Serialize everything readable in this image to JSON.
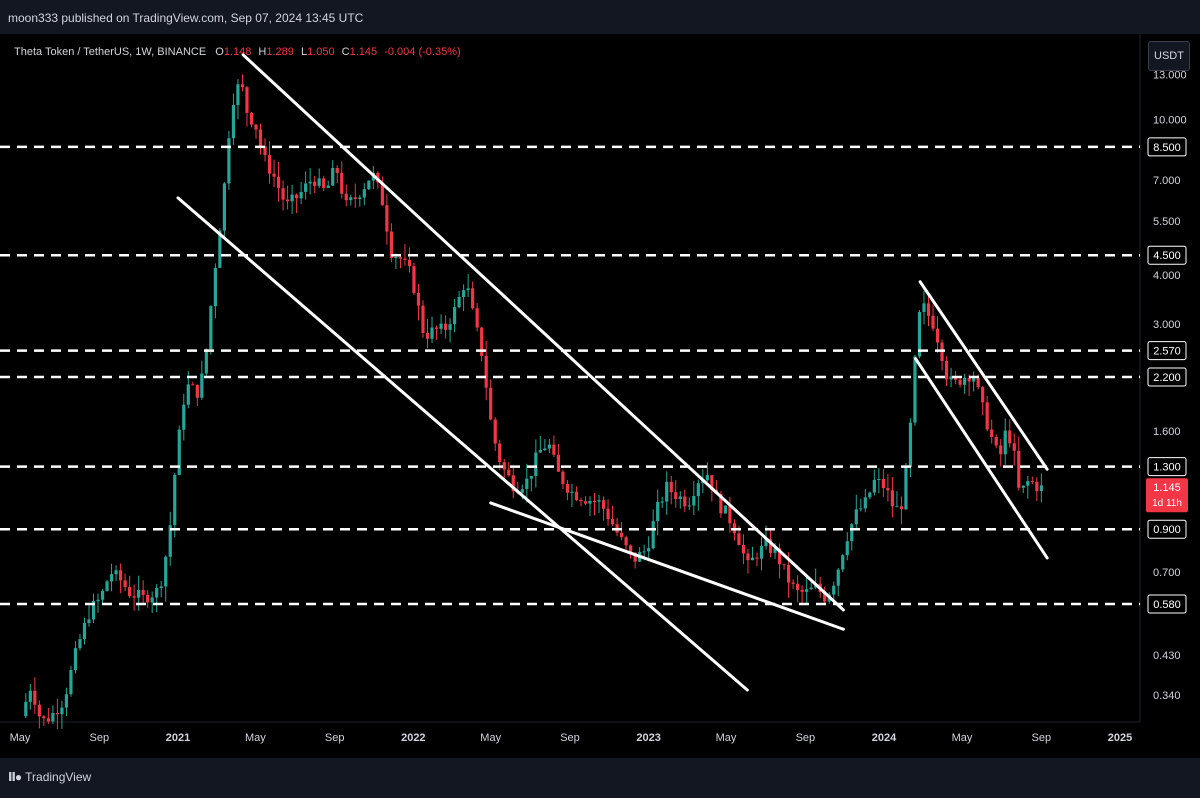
{
  "header": {
    "published": "moon333 published on TradingView.com, Sep 07, 2024 13:45 UTC"
  },
  "legend": {
    "symbol": "Theta Token / TetherUS, 1W, BINANCE",
    "open_label": "O",
    "open": "1.148",
    "high_label": "H",
    "high": "1.289",
    "low_label": "L",
    "low": "1.050",
    "close_label": "C",
    "close": "1.145",
    "change": "-0.004 (-0.35%)"
  },
  "unit_button": "USDT",
  "footer": {
    "brand": "TradingView"
  },
  "colors": {
    "up": "#26a69a",
    "down": "#f23645",
    "background": "#000000",
    "level_line": "#ffffff",
    "trend_line": "#ffffff",
    "text": "#d1d4dc"
  },
  "chart_data": {
    "type": "candlestick",
    "title": "Theta Token / TetherUS, 1W, BINANCE",
    "yscale": "log",
    "ylim": [
      0.29,
      16.5
    ],
    "xlim": [
      "2020-05-01",
      "2025-02-01"
    ],
    "y_ticks": [
      "13.000",
      "10.000",
      "7.000",
      "5.500",
      "4.000",
      "3.000",
      "1.600",
      "0.700",
      "0.430",
      "0.340"
    ],
    "x_ticks": [
      {
        "label": "May",
        "date": "2020-05-01"
      },
      {
        "label": "Sep",
        "date": "2020-09-01"
      },
      {
        "label": "2021",
        "date": "2021-01-01"
      },
      {
        "label": "May",
        "date": "2021-05-01"
      },
      {
        "label": "Sep",
        "date": "2021-09-01"
      },
      {
        "label": "2022",
        "date": "2022-01-01"
      },
      {
        "label": "May",
        "date": "2022-05-01"
      },
      {
        "label": "Sep",
        "date": "2022-09-01"
      },
      {
        "label": "2023",
        "date": "2023-01-01"
      },
      {
        "label": "May",
        "date": "2023-05-01"
      },
      {
        "label": "Sep",
        "date": "2023-09-01"
      },
      {
        "label": "2024",
        "date": "2024-01-01"
      },
      {
        "label": "May",
        "date": "2024-05-01"
      },
      {
        "label": "Sep",
        "date": "2024-09-01"
      },
      {
        "label": "2025",
        "date": "2025-01-01"
      }
    ],
    "horizontal_levels": [
      {
        "value": 8.5,
        "label": "8.500"
      },
      {
        "value": 4.5,
        "label": "4.500"
      },
      {
        "value": 2.57,
        "label": "2.570"
      },
      {
        "value": 2.2,
        "label": "2.200"
      },
      {
        "value": 1.3,
        "label": "1.300"
      },
      {
        "value": 0.9,
        "label": "0.900"
      },
      {
        "value": 0.58,
        "label": "0.580"
      }
    ],
    "last_price": {
      "value": 1.145,
      "label": "1.145",
      "countdown": "1d 11h"
    },
    "trend_lines": [
      {
        "name": "upper-channel-2021",
        "from": [
          "2021-04-12",
          14.6
        ],
        "to": [
          "2023-10-30",
          0.56
        ]
      },
      {
        "name": "lower-channel-2021",
        "from": [
          "2021-01-01",
          6.3
        ],
        "to": [
          "2023-06-03",
          0.35
        ]
      },
      {
        "name": "wedge-lower",
        "from": [
          "2022-05-01",
          1.05
        ],
        "to": [
          "2023-10-30",
          0.5
        ]
      },
      {
        "name": "upper-channel-2024",
        "from": [
          "2024-02-26",
          3.85
        ],
        "to": [
          "2024-09-10",
          1.28
        ]
      },
      {
        "name": "lower-channel-2024",
        "from": [
          "2024-02-19",
          2.45
        ],
        "to": [
          "2024-09-10",
          0.76
        ]
      }
    ],
    "price_path": [
      [
        "2020-05-10",
        0.3
      ],
      [
        "2020-05-25",
        0.36
      ],
      [
        "2020-06-10",
        0.29
      ],
      [
        "2020-06-25",
        0.3
      ],
      [
        "2020-07-15",
        0.33
      ],
      [
        "2020-08-05",
        0.45
      ],
      [
        "2020-08-25",
        0.56
      ],
      [
        "2020-09-10",
        0.6
      ],
      [
        "2020-09-25",
        0.7
      ],
      [
        "2020-10-10",
        0.67
      ],
      [
        "2020-10-25",
        0.62
      ],
      [
        "2020-11-15",
        0.6
      ],
      [
        "2020-12-10",
        0.63
      ],
      [
        "2020-12-25",
        0.85
      ],
      [
        "2021-01-05",
        1.35
      ],
      [
        "2021-01-20",
        2.1
      ],
      [
        "2021-02-10",
        2.0
      ],
      [
        "2021-02-20",
        2.5
      ],
      [
        "2021-03-05",
        4.0
      ],
      [
        "2021-03-20",
        6.5
      ],
      [
        "2021-04-01",
        11.0
      ],
      [
        "2021-04-15",
        12.5
      ],
      [
        "2021-04-25",
        10.5
      ],
      [
        "2021-05-10",
        9.5
      ],
      [
        "2021-05-20",
        8.0
      ],
      [
        "2021-06-05",
        7.2
      ],
      [
        "2021-06-25",
        6.0
      ],
      [
        "2021-07-15",
        6.4
      ],
      [
        "2021-08-05",
        7.1
      ],
      [
        "2021-08-25",
        6.5
      ],
      [
        "2021-09-10",
        7.6
      ],
      [
        "2021-09-25",
        6.0
      ],
      [
        "2021-10-10",
        6.3
      ],
      [
        "2021-10-25",
        6.8
      ],
      [
        "2021-11-05",
        7.3
      ],
      [
        "2021-11-20",
        6.3
      ],
      [
        "2021-12-05",
        4.6
      ],
      [
        "2021-12-20",
        4.4
      ],
      [
        "2022-01-05",
        4.0
      ],
      [
        "2022-01-25",
        2.8
      ],
      [
        "2022-02-10",
        2.9
      ],
      [
        "2022-02-25",
        2.9
      ],
      [
        "2022-03-15",
        3.3
      ],
      [
        "2022-03-30",
        3.9
      ],
      [
        "2022-04-10",
        3.2
      ],
      [
        "2022-04-25",
        2.5
      ],
      [
        "2022-05-10",
        1.6
      ],
      [
        "2022-05-25",
        1.3
      ],
      [
        "2022-06-15",
        1.15
      ],
      [
        "2022-07-05",
        1.2
      ],
      [
        "2022-07-20",
        1.4
      ],
      [
        "2022-08-05",
        1.5
      ],
      [
        "2022-08-20",
        1.25
      ],
      [
        "2022-09-10",
        1.12
      ],
      [
        "2022-10-01",
        1.08
      ],
      [
        "2022-10-25",
        1.05
      ],
      [
        "2022-11-10",
        0.95
      ],
      [
        "2022-11-25",
        0.85
      ],
      [
        "2022-12-15",
        0.75
      ],
      [
        "2023-01-05",
        0.8
      ],
      [
        "2023-01-20",
        1.0
      ],
      [
        "2023-02-05",
        1.15
      ],
      [
        "2023-02-20",
        1.1
      ],
      [
        "2023-03-10",
        1.05
      ],
      [
        "2023-03-25",
        1.2
      ],
      [
        "2023-04-10",
        1.25
      ],
      [
        "2023-04-25",
        1.05
      ],
      [
        "2023-05-10",
        0.98
      ],
      [
        "2023-05-25",
        0.88
      ],
      [
        "2023-06-10",
        0.72
      ],
      [
        "2023-06-25",
        0.78
      ],
      [
        "2023-07-10",
        0.82
      ],
      [
        "2023-07-25",
        0.78
      ],
      [
        "2023-08-10",
        0.68
      ],
      [
        "2023-08-25",
        0.62
      ],
      [
        "2023-09-10",
        0.62
      ],
      [
        "2023-09-25",
        0.64
      ],
      [
        "2023-10-10",
        0.6
      ],
      [
        "2023-10-25",
        0.68
      ],
      [
        "2023-11-10",
        0.85
      ],
      [
        "2023-11-25",
        0.98
      ],
      [
        "2023-12-10",
        1.05
      ],
      [
        "2023-12-25",
        1.2
      ],
      [
        "2024-01-10",
        1.15
      ],
      [
        "2024-01-25",
        1.0
      ],
      [
        "2024-02-05",
        1.05
      ],
      [
        "2024-02-15",
        1.4
      ],
      [
        "2024-02-25",
        2.4
      ],
      [
        "2024-03-05",
        3.4
      ],
      [
        "2024-03-15",
        3.2
      ],
      [
        "2024-03-25",
        3.0
      ],
      [
        "2024-04-05",
        2.6
      ],
      [
        "2024-04-15",
        2.2
      ],
      [
        "2024-04-25",
        2.1
      ],
      [
        "2024-05-10",
        2.2
      ],
      [
        "2024-05-25",
        2.25
      ],
      [
        "2024-06-10",
        1.8
      ],
      [
        "2024-06-25",
        1.5
      ],
      [
        "2024-07-05",
        1.35
      ],
      [
        "2024-07-15",
        1.6
      ],
      [
        "2024-07-25",
        1.5
      ],
      [
        "2024-08-05",
        1.1
      ],
      [
        "2024-08-20",
        1.2
      ],
      [
        "2024-09-05",
        1.145
      ]
    ]
  }
}
